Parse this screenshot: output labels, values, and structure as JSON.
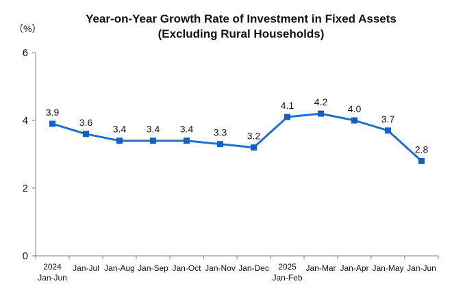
{
  "chart_data": {
    "type": "line",
    "title_line1": "Year-on-Year Growth Rate of Investment in Fixed Assets",
    "title_line2": "(Excluding Rural Households)",
    "unit_label": "（%）",
    "categories": [
      [
        "2024",
        "Jan-Jun"
      ],
      [
        "Jan-Jul"
      ],
      [
        "Jan-Aug"
      ],
      [
        "Jan-Sep"
      ],
      [
        "Jan-Oct"
      ],
      [
        "Jan-Nov"
      ],
      [
        "Jan-Dec"
      ],
      [
        "2025",
        "Jan-Feb"
      ],
      [
        "Jan-Mar"
      ],
      [
        "Jan-Apr"
      ],
      [
        "Jan-May"
      ],
      [
        "Jan-Jun"
      ]
    ],
    "values": [
      3.9,
      3.6,
      3.4,
      3.4,
      3.4,
      3.3,
      3.2,
      4.1,
      4.2,
      4.0,
      3.7,
      2.8
    ],
    "value_labels": [
      "3.9",
      "3.6",
      "3.4",
      "3.4",
      "3.4",
      "3.3",
      "3.2",
      "4.1",
      "4.2",
      "4.0",
      "3.7",
      "2.8"
    ],
    "ylim": [
      0,
      6
    ],
    "yticks": [
      "0",
      "2",
      "4",
      "6"
    ],
    "grid": false,
    "line_color": "#1f6fd1",
    "marker_color": "#1660c4"
  }
}
